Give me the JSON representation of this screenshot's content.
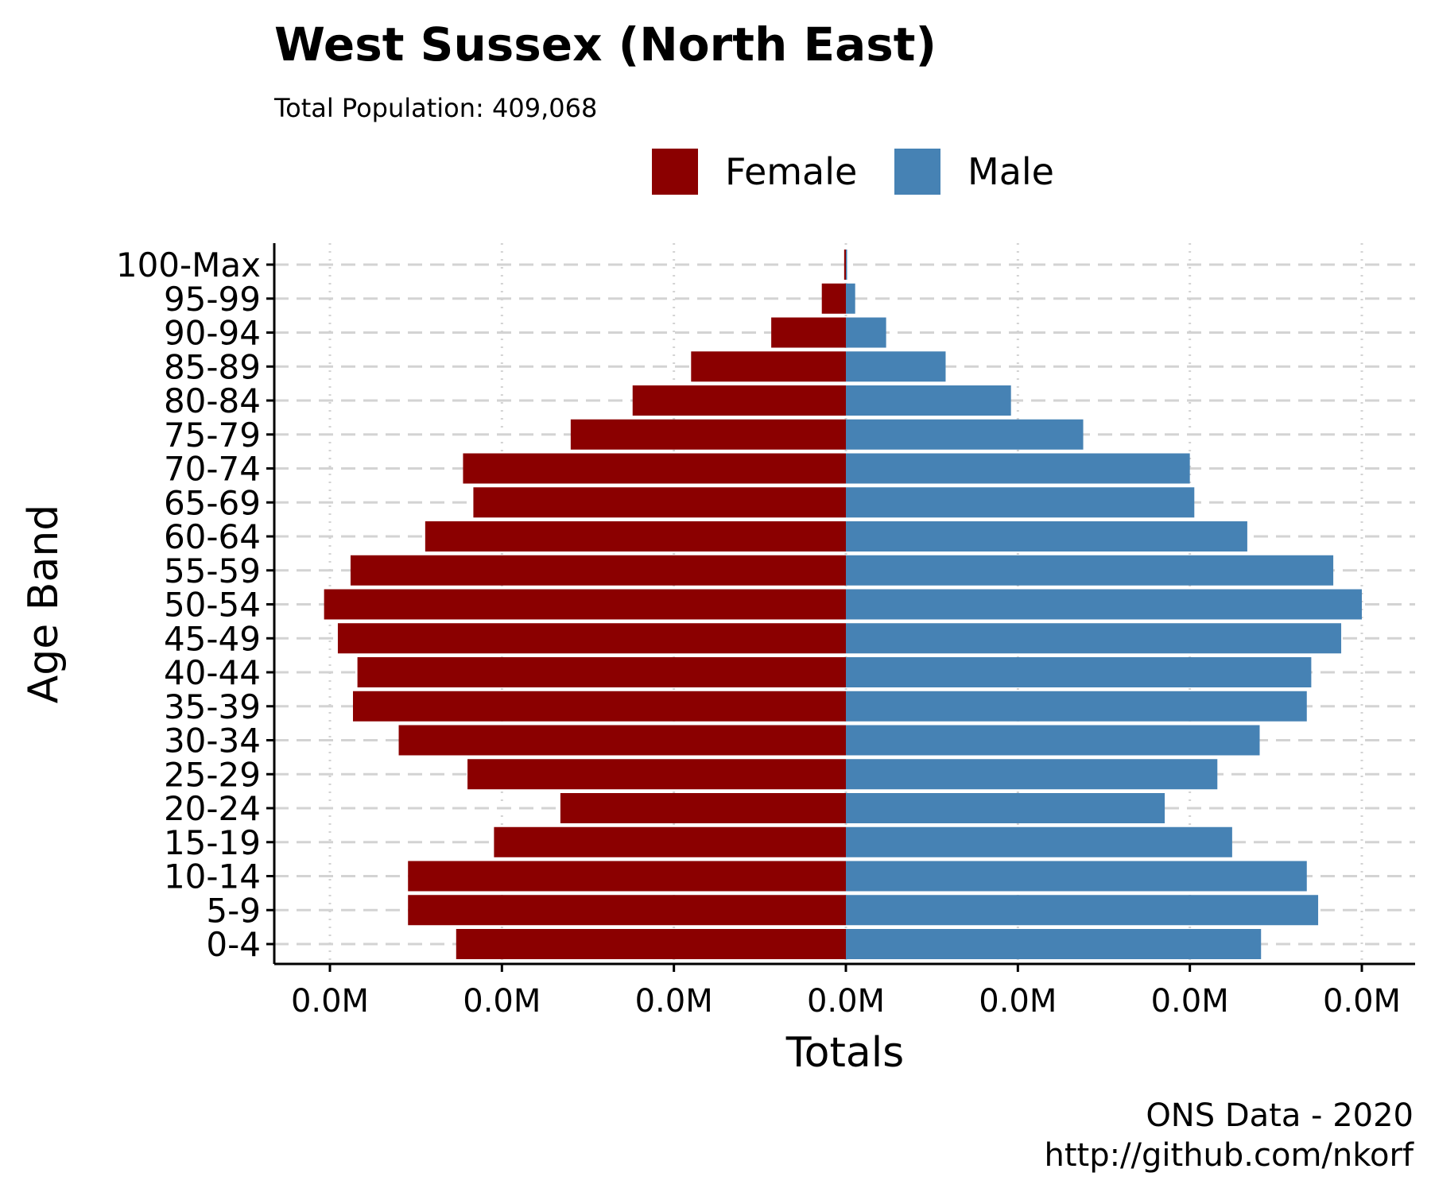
{
  "chart_data": {
    "type": "bar",
    "orientation": "horizontal",
    "layout": "population-pyramid",
    "title": "West Sussex (North East)",
    "subtitle": "Total Population:  409,068",
    "xlabel": "Totals",
    "ylabel": "Age Band",
    "caption_lines": [
      "ONS Data - 2020",
      "http://github.com/nkorf"
    ],
    "categories": [
      "0-4",
      "5-9",
      "10-14",
      "15-19",
      "20-24",
      "25-29",
      "30-34",
      "35-39",
      "40-44",
      "45-49",
      "50-54",
      "55-59",
      "60-64",
      "65-69",
      "70-74",
      "75-79",
      "80-84",
      "85-89",
      "90-94",
      "95-99",
      "100-Max"
    ],
    "xlim": [
      -15000,
      15000
    ],
    "x_ticks": [
      -15000,
      -10000,
      -5000,
      0,
      5000,
      10000,
      15000
    ],
    "x_tick_labels": [
      "0.0M",
      "0.0M",
      "0.0M",
      "0.0M",
      "0.0M",
      "0.0M",
      "0.0M"
    ],
    "grid": true,
    "legend": {
      "placement": "top",
      "entries": [
        "Female",
        "Male"
      ]
    },
    "series": [
      {
        "name": "Female",
        "color": "#8B0000",
        "direction": "left",
        "values": [
          11330,
          12730,
          12730,
          10230,
          8300,
          11000,
          13000,
          14330,
          14200,
          14770,
          15170,
          14400,
          12230,
          10830,
          11130,
          8000,
          6200,
          4500,
          2170,
          700,
          50
        ]
      },
      {
        "name": "Male",
        "color": "#4682B4",
        "direction": "right",
        "values": [
          12070,
          13730,
          13400,
          11230,
          9270,
          10800,
          12030,
          13400,
          13530,
          14400,
          15000,
          14170,
          11670,
          10130,
          10000,
          6900,
          4800,
          2900,
          1170,
          270,
          20
        ]
      }
    ]
  }
}
